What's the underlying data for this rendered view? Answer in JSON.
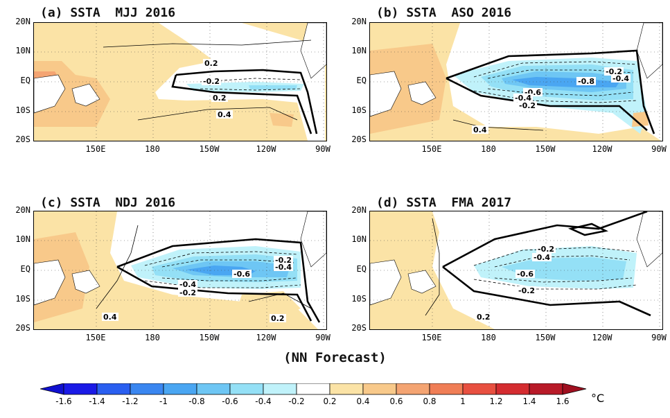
{
  "panels": [
    {
      "title": "(a) SSTA  MJJ 2016",
      "labels": [
        "0.2",
        "-0.2",
        "0.2",
        "0.4"
      ],
      "id": "a"
    },
    {
      "title": "(b) SSTA  ASO 2016",
      "labels": [
        "-0.2",
        "-0.8",
        "-0.6",
        "-0.4",
        "-0.2",
        "0.4",
        "-0.4"
      ],
      "id": "b"
    },
    {
      "title": "(c) SSTA  NDJ 2016",
      "labels": [
        "-0.2",
        "-0.4",
        "-0.6",
        "-0.4",
        "-0.2",
        "0.4",
        "0.2"
      ],
      "id": "c"
    },
    {
      "title": "(d) SSTA  FMA 2017",
      "labels": [
        "-0.2",
        "-0.4",
        "-0.6",
        "-0.2",
        "0.2"
      ],
      "id": "d"
    }
  ],
  "axes": {
    "lat_labels": [
      "20N",
      "10N",
      "EQ",
      "10S",
      "20S"
    ],
    "lon_labels": [
      "150E",
      "180",
      "150W",
      "120W",
      "90W"
    ]
  },
  "caption": "(NN Forecast)",
  "colorbar": {
    "unit": "°C",
    "ticks": [
      "-1.6",
      "-1.4",
      "-1.2",
      "-1",
      "-0.8",
      "-0.6",
      "-0.4",
      "-0.2",
      "0.2",
      "0.4",
      "0.6",
      "0.8",
      "1",
      "1.2",
      "1.4",
      "1.6"
    ],
    "colors": [
      "#1a1ae6",
      "#2a5ff0",
      "#3a86f0",
      "#4aa6f2",
      "#6ec6f4",
      "#94e0f6",
      "#c0f2fa",
      "#ffffff",
      "#fbe3a6",
      "#f8c98a",
      "#f4a472",
      "#f07e56",
      "#e85040",
      "#d42c30",
      "#b81a28"
    ],
    "low_color": "#1010d0",
    "high_color": "#a01020"
  }
}
